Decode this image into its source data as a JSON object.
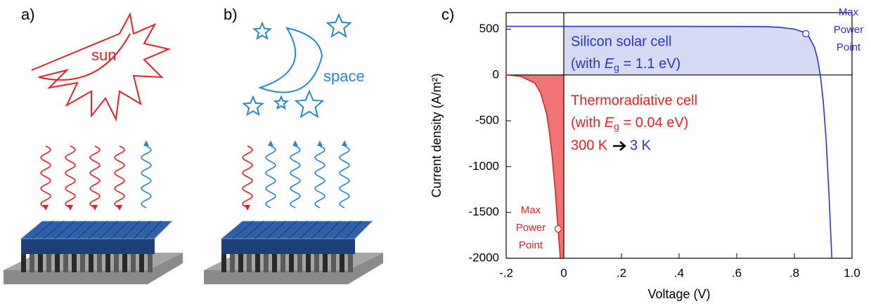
{
  "illustration": {
    "label_a": "a)",
    "label_b": "b)",
    "sun": "sun",
    "space": "space"
  },
  "chart_data": {
    "type": "line",
    "panel_label": "c)",
    "xlabel": "Voltage (V)",
    "ylabel": "Current density (A/m²)",
    "xlim": [
      -0.2,
      1.0
    ],
    "ylim": [
      -2000,
      680
    ],
    "xticks": [
      {
        "value": -0.2,
        "label": "-.2"
      },
      0,
      {
        "value": 0.2,
        "label": ".2"
      },
      {
        "value": 0.4,
        "label": ".4"
      },
      {
        "value": 0.6,
        "label": ".6"
      },
      {
        "value": 0.8,
        "label": ".8"
      },
      {
        "value": 1.0,
        "label": "1.0"
      }
    ],
    "yticks": [
      500,
      0,
      -500,
      -1000,
      -1500,
      -2000
    ],
    "series": [
      {
        "name": "Silicon solar cell",
        "color": "#2b34c4",
        "fill": "#d6daf5",
        "x": [
          -0.2,
          0,
          0.2,
          0.4,
          0.6,
          0.7,
          0.75,
          0.8,
          0.83,
          0.85,
          0.87,
          0.88,
          0.89,
          0.9,
          0.91,
          0.92,
          0.93
        ],
        "values": [
          530,
          530,
          530,
          530,
          529,
          527,
          520,
          500,
          470,
          420,
          300,
          180,
          0,
          -280,
          -700,
          -1300,
          -2000
        ]
      },
      {
        "name": "Thermoradiative  cell",
        "color": "#e3212b",
        "fill": "#f07474",
        "x": [
          -0.2,
          -0.15,
          -0.1,
          -0.08,
          -0.06,
          -0.05,
          -0.04,
          -0.03,
          -0.02,
          -0.012
        ],
        "values": [
          0,
          -15,
          -90,
          -200,
          -420,
          -620,
          -900,
          -1250,
          -1680,
          -2000
        ]
      }
    ],
    "annotations": [
      {
        "before": "(with ",
        "symbol": "E",
        "subscript": "g",
        "after": " = 1.1 eV)"
      },
      {
        "before": "(with ",
        "symbol": "E",
        "subscript": "g",
        "after": " = 0.04 eV)"
      }
    ],
    "temperatures": [
      "300 K",
      "3 K"
    ],
    "markers": [
      {
        "x": 0.84,
        "y": 450,
        "label": [
          "Max",
          "Power",
          "Point"
        ]
      },
      {
        "x": -0.02,
        "y": -1680,
        "label": [
          "Max",
          "Power",
          "Point"
        ]
      }
    ]
  }
}
